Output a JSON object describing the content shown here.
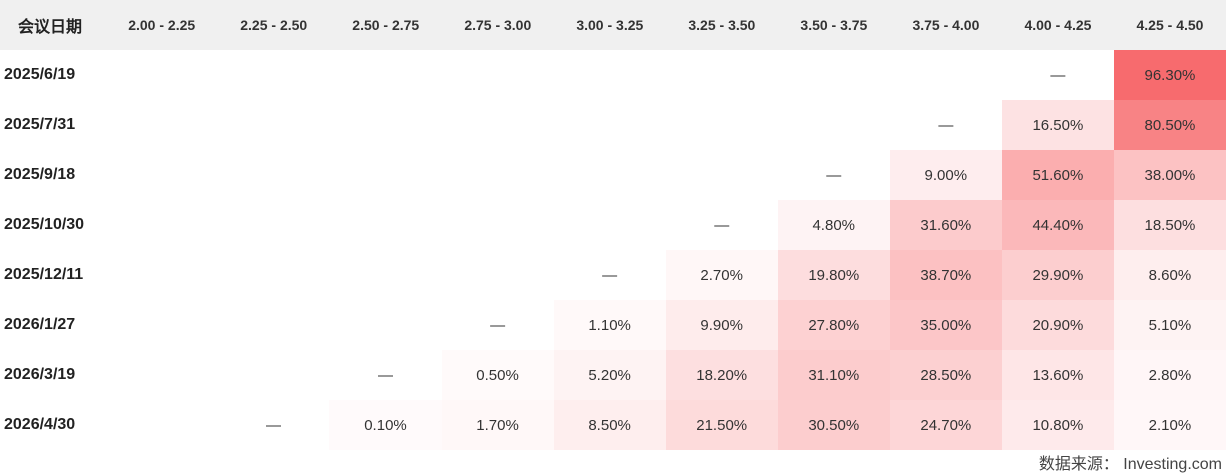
{
  "chart_data": {
    "type": "table",
    "first_header": "会议日期",
    "columns": [
      "2.00 - 2.25",
      "2.25 - 2.50",
      "2.50 - 2.75",
      "2.75 - 3.00",
      "3.00 - 3.25",
      "3.25 - 3.50",
      "3.50 - 3.75",
      "3.75 - 4.00",
      "4.00 - 4.25",
      "4.25 - 4.50"
    ],
    "rows": [
      {
        "date": "2025/6/19",
        "cells": [
          "",
          "",
          "",
          "",
          "",
          "",
          "",
          "",
          "—",
          "96.30%"
        ]
      },
      {
        "date": "2025/7/31",
        "cells": [
          "",
          "",
          "",
          "",
          "",
          "",
          "",
          "—",
          "16.50%",
          "80.50%"
        ]
      },
      {
        "date": "2025/9/18",
        "cells": [
          "",
          "",
          "",
          "",
          "",
          "",
          "—",
          "9.00%",
          "51.60%",
          "38.00%"
        ]
      },
      {
        "date": "2025/10/30",
        "cells": [
          "",
          "",
          "",
          "",
          "",
          "—",
          "4.80%",
          "31.60%",
          "44.40%",
          "18.50%"
        ]
      },
      {
        "date": "2025/12/11",
        "cells": [
          "",
          "",
          "",
          "",
          "—",
          "2.70%",
          "19.80%",
          "38.70%",
          "29.90%",
          "8.60%"
        ]
      },
      {
        "date": "2026/1/27",
        "cells": [
          "",
          "",
          "",
          "—",
          "1.10%",
          "9.90%",
          "27.80%",
          "35.00%",
          "20.90%",
          "5.10%"
        ]
      },
      {
        "date": "2026/3/19",
        "cells": [
          "",
          "",
          "—",
          "0.50%",
          "5.20%",
          "18.20%",
          "31.10%",
          "28.50%",
          "13.60%",
          "2.80%"
        ]
      },
      {
        "date": "2026/4/30",
        "cells": [
          "",
          "—",
          "0.10%",
          "1.70%",
          "8.50%",
          "21.50%",
          "30.50%",
          "24.70%",
          "10.80%",
          "2.10%"
        ]
      }
    ],
    "colors": {
      "heat_max": "#f76b6e",
      "header_bg": "#f0f0f0"
    }
  },
  "source": "数据来源： Investing.com"
}
